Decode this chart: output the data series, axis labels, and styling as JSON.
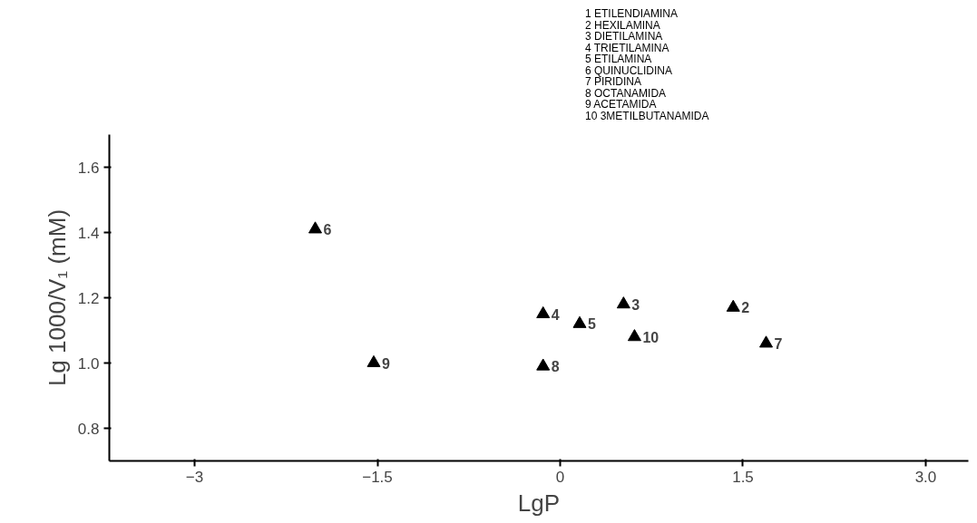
{
  "chart_data": {
    "type": "scatter",
    "xlabel": "LgP",
    "ylabel": "Lg 1000/V₁ (mM)",
    "x": [
      -2.01,
      -1.53,
      -0.14,
      0.16,
      0.52,
      0.61,
      1.42,
      1.69,
      -0.14
    ],
    "series": [
      {
        "color": "#000000",
        "values": [
          1.41,
          1.0,
          1.15,
          1.12,
          1.18,
          1.08,
          1.17,
          1.06,
          0.99
        ]
      }
    ],
    "xlim": [
      -3.7,
      3.35
    ],
    "xticks": [
      -3,
      -1.5,
      0,
      1.5,
      {
        "value": 3,
        "label": "3.0"
      }
    ],
    "ylim": [
      0.7,
      1.7
    ],
    "yticks": [
      {
        "value": 0.8,
        "label": "0.8"
      },
      {
        "value": 1,
        "label": "1.0"
      },
      1.2,
      1.4,
      1.6
    ],
    "marker": "triangle",
    "grid": false,
    "annotations": [
      {
        "text": "6",
        "x": -2.01,
        "y": 1.41
      },
      {
        "text": "9",
        "x": -1.53,
        "y": 1.0
      },
      {
        "text": "4",
        "x": -0.14,
        "y": 1.15
      },
      {
        "text": "5",
        "x": 0.16,
        "y": 1.12
      },
      {
        "text": "3",
        "x": 0.52,
        "y": 1.18
      },
      {
        "text": "10",
        "x": 0.61,
        "y": 1.08
      },
      {
        "text": "2",
        "x": 1.42,
        "y": 1.17
      },
      {
        "text": "7",
        "x": 1.69,
        "y": 1.06
      },
      {
        "text": "8",
        "x": -0.14,
        "y": 0.99
      },
      "1 ETILENDIAMINA",
      "2 HEXILAMINA",
      "3 DIETILAMINA",
      "4 TRIETILAMINA",
      "5 ETILAMINA",
      "6 QUINUCLIDINA",
      "7 PIRIDINA",
      "8 OCTANAMIDA",
      "9 ACETAMIDA",
      "10 3METILBUTANAMIDA"
    ]
  }
}
